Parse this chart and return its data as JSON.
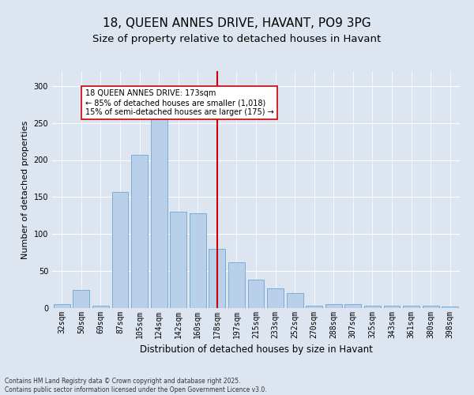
{
  "title": "18, QUEEN ANNES DRIVE, HAVANT, PO9 3PG",
  "subtitle": "Size of property relative to detached houses in Havant",
  "xlabel": "Distribution of detached houses by size in Havant",
  "ylabel": "Number of detached properties",
  "categories": [
    "32sqm",
    "50sqm",
    "69sqm",
    "87sqm",
    "105sqm",
    "124sqm",
    "142sqm",
    "160sqm",
    "178sqm",
    "197sqm",
    "215sqm",
    "233sqm",
    "252sqm",
    "270sqm",
    "288sqm",
    "307sqm",
    "325sqm",
    "343sqm",
    "361sqm",
    "380sqm",
    "398sqm"
  ],
  "values": [
    5,
    25,
    3,
    157,
    207,
    258,
    130,
    128,
    80,
    62,
    38,
    27,
    20,
    3,
    5,
    5,
    3,
    3,
    3,
    3,
    2
  ],
  "bar_color": "#b8d0ea",
  "bar_edge_color": "#7aacd4",
  "line_x_index": 8,
  "line_color": "#cc0000",
  "annotation_text": "18 QUEEN ANNES DRIVE: 173sqm\n← 85% of detached houses are smaller (1,018)\n15% of semi-detached houses are larger (175) →",
  "annotation_box_color": "#ffffff",
  "annotation_box_edge": "#cc0000",
  "ylim": [
    0,
    320
  ],
  "yticks": [
    0,
    50,
    100,
    150,
    200,
    250,
    300
  ],
  "background_color": "#dde5f0",
  "footer_line1": "Contains HM Land Registry data © Crown copyright and database right 2025.",
  "footer_line2": "Contains public sector information licensed under the Open Government Licence v3.0.",
  "title_fontsize": 11,
  "tick_fontsize": 7,
  "label_fontsize": 8.5,
  "ylabel_fontsize": 8,
  "footer_fontsize": 5.5
}
